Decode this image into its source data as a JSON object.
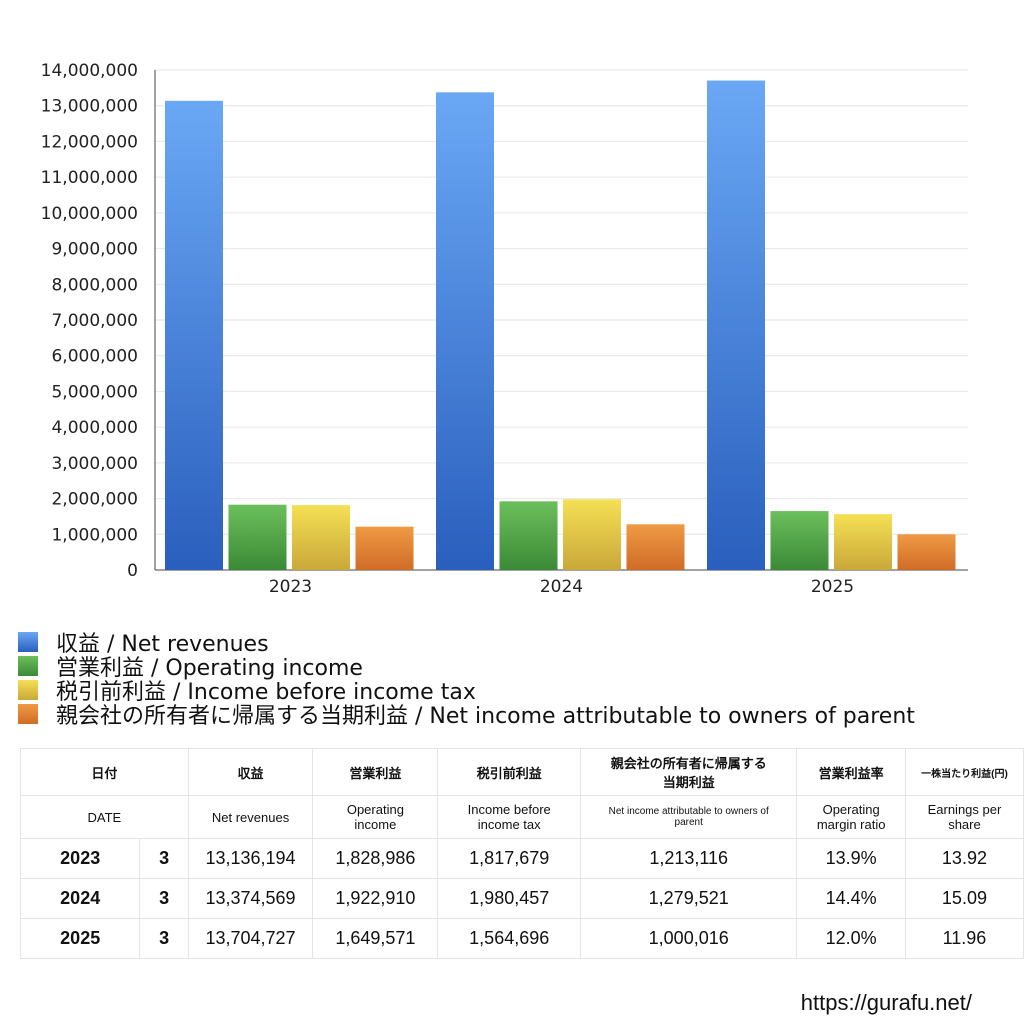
{
  "chart_data": {
    "type": "bar",
    "categories": [
      "2023",
      "2024",
      "2025"
    ],
    "ylim": [
      0,
      14000000
    ],
    "yticks": [
      "0",
      "1,000,000",
      "2,000,000",
      "3,000,000",
      "4,000,000",
      "5,000,000",
      "6,000,000",
      "7,000,000",
      "8,000,000",
      "9,000,000",
      "10,000,000",
      "11,000,000",
      "12,000,000",
      "13,000,000",
      "14,000,000"
    ],
    "grid": true,
    "legend_position": "bottom",
    "series": [
      {
        "name": "収益 / Net revenues",
        "values": [
          13136194,
          13374569,
          13704727
        ],
        "color": "#3f7fe0"
      },
      {
        "name": "営業利益 / Operating income",
        "values": [
          1828986,
          1922910,
          1649571
        ],
        "color": "#4fa044"
      },
      {
        "name": "税引前利益 / Income before income tax",
        "values": [
          1817679,
          1980457,
          1564696
        ],
        "color": "#e0c23a"
      },
      {
        "name": "親会社の所有者に帰属する当期利益 / Net income attributable to owners of parent",
        "values": [
          1213116,
          1279521,
          1000016
        ],
        "color": "#e07b2e"
      }
    ]
  },
  "table": {
    "header_jp": [
      "日付",
      "収益",
      "営業利益",
      "税引前利益",
      "親会社の所有者に帰属する当期利益",
      "営業利益率",
      "一株当たり利益(円)"
    ],
    "header_en": [
      "DATE",
      "Net revenues",
      "Operating income",
      "Income before income tax",
      "Net income attributable to owners of parent",
      "Operating margin ratio",
      "Earnings per share"
    ],
    "rows": [
      [
        "2023",
        "3",
        "13,136,194",
        "1,828,986",
        "1,817,679",
        "1,213,116",
        "13.9%",
        "13.92"
      ],
      [
        "2024",
        "3",
        "13,374,569",
        "1,922,910",
        "1,980,457",
        "1,279,521",
        "14.4%",
        "15.09"
      ],
      [
        "2025",
        "3",
        "13,704,727",
        "1,649,571",
        "1,564,696",
        "1,000,016",
        "12.0%",
        "11.96"
      ]
    ]
  },
  "footer": {
    "url": "https://gurafu.net/"
  }
}
